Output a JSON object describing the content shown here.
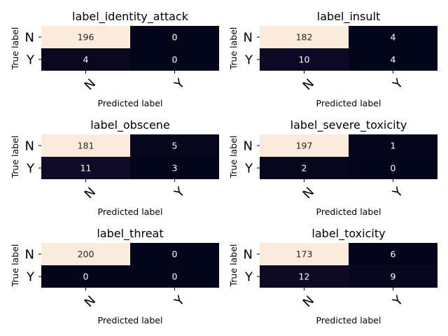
{
  "chart_data": [
    {
      "type": "heatmap",
      "title": "label_identity_attack",
      "xlabel": "Predicted label",
      "ylabel": "True label",
      "x_categories": [
        "N",
        "Y"
      ],
      "y_categories": [
        "N",
        "Y"
      ],
      "values": [
        [
          196,
          0
        ],
        [
          4,
          0
        ]
      ]
    },
    {
      "type": "heatmap",
      "title": "label_insult",
      "xlabel": "Predicted label",
      "ylabel": "True label",
      "x_categories": [
        "N",
        "Y"
      ],
      "y_categories": [
        "N",
        "Y"
      ],
      "values": [
        [
          182,
          4
        ],
        [
          10,
          4
        ]
      ]
    },
    {
      "type": "heatmap",
      "title": "label_obscene",
      "xlabel": "Predicted label",
      "ylabel": "True label",
      "x_categories": [
        "N",
        "Y"
      ],
      "y_categories": [
        "N",
        "Y"
      ],
      "values": [
        [
          181,
          5
        ],
        [
          11,
          3
        ]
      ]
    },
    {
      "type": "heatmap",
      "title": "label_severe_toxicity",
      "xlabel": "Predicted label",
      "ylabel": "True label",
      "x_categories": [
        "N",
        "Y"
      ],
      "y_categories": [
        "N",
        "Y"
      ],
      "values": [
        [
          197,
          1
        ],
        [
          2,
          0
        ]
      ]
    },
    {
      "type": "heatmap",
      "title": "label_threat",
      "xlabel": "Predicted label",
      "ylabel": "True label",
      "x_categories": [
        "N",
        "Y"
      ],
      "y_categories": [
        "N",
        "Y"
      ],
      "values": [
        [
          200,
          0
        ],
        [
          0,
          0
        ]
      ]
    },
    {
      "type": "heatmap",
      "title": "label_toxicity",
      "xlabel": "Predicted label",
      "ylabel": "True label",
      "x_categories": [
        "N",
        "Y"
      ],
      "y_categories": [
        "N",
        "Y"
      ],
      "values": [
        [
          173,
          6
        ],
        [
          12,
          9
        ]
      ]
    }
  ],
  "colors": {
    "low": "#03051a",
    "high": "#faebdd",
    "text_on_dark": "#ffffff",
    "text_on_light": "#262626"
  }
}
